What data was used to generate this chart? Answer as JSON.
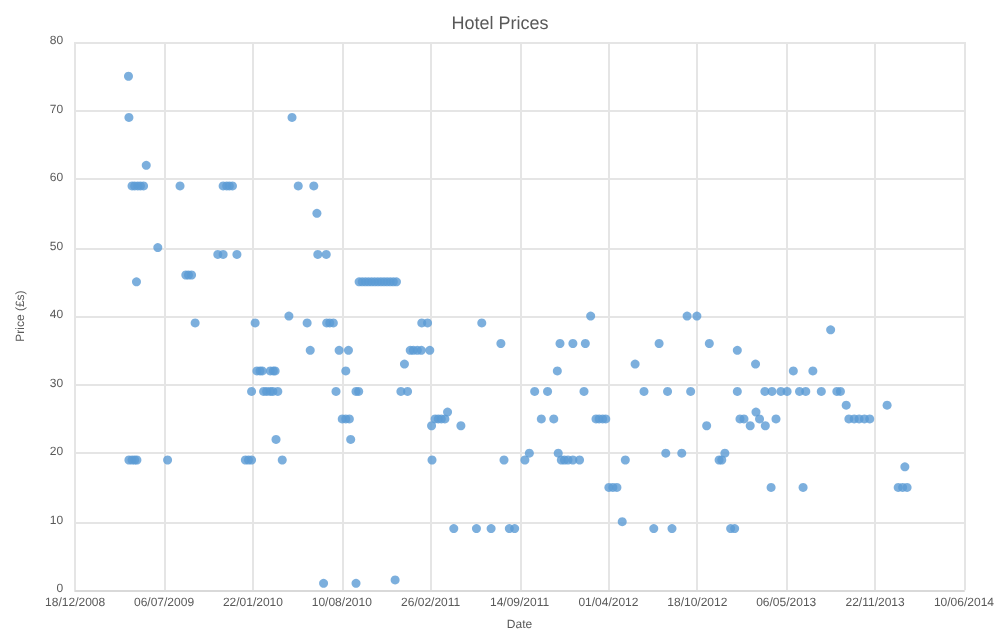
{
  "chart_data": {
    "type": "scatter",
    "title": "Hotel Prices",
    "xlabel": "Date",
    "ylabel": "Price (£s)",
    "x": [
      "2009-04-17",
      "2009-04-18",
      "2009-04-25",
      "2009-05-01",
      "2009-05-08",
      "2009-05-14",
      "2009-05-21",
      "2009-05-05",
      "2009-04-18",
      "2009-04-25",
      "2009-05-01",
      "2009-05-06",
      "2009-05-27",
      "2009-06-22",
      "2009-07-14",
      "2009-08-11",
      "2009-08-24",
      "2009-08-30",
      "2009-09-06",
      "2009-09-14",
      "2009-11-04",
      "2009-11-16",
      "2009-11-16",
      "2009-11-24",
      "2009-11-30",
      "2009-12-07",
      "2009-12-17",
      "2010-01-05",
      "2010-01-12",
      "2010-01-19",
      "2010-01-19",
      "2010-01-27",
      "2010-01-31",
      "2010-02-07",
      "2010-02-12",
      "2010-02-15",
      "2010-02-22",
      "2010-03-02",
      "2010-03-08",
      "2010-03-19",
      "2010-03-02",
      "2010-03-09",
      "2010-03-13",
      "2010-03-15",
      "2010-03-29",
      "2010-04-13",
      "2010-04-20",
      "2010-05-04",
      "2010-05-24",
      "2010-05-31",
      "2010-06-08",
      "2010-06-15",
      "2010-06-17",
      "2010-06-30",
      "2010-07-06",
      "2010-07-07",
      "2010-07-14",
      "2010-07-22",
      "2010-07-28",
      "2010-08-04",
      "2010-08-11",
      "2010-08-19",
      "2010-08-25",
      "2010-08-19",
      "2010-08-27",
      "2010-08-30",
      "2010-09-11",
      "2010-09-17",
      "2010-09-11",
      "2010-09-18",
      "2010-09-25",
      "2010-10-02",
      "2010-10-09",
      "2010-10-16",
      "2010-10-23",
      "2010-10-30",
      "2010-11-06",
      "2010-11-13",
      "2010-11-20",
      "2010-11-27",
      "2010-12-04",
      "2010-12-11",
      "2010-12-08",
      "2010-12-21",
      "2011-01-05",
      "2010-12-29",
      "2011-01-11",
      "2011-01-18",
      "2011-01-27",
      "2011-02-05",
      "2011-02-06",
      "2011-02-19",
      "2011-02-24",
      "2011-02-28",
      "2011-03-01",
      "2011-03-08",
      "2011-03-15",
      "2011-03-22",
      "2011-03-30",
      "2011-04-05",
      "2011-04-19",
      "2011-05-05",
      "2011-06-09",
      "2011-06-21",
      "2011-07-12",
      "2011-08-03",
      "2011-08-10",
      "2011-08-22",
      "2011-09-03",
      "2011-09-26",
      "2011-10-06",
      "2011-10-18",
      "2011-11-02",
      "2011-11-16",
      "2011-11-30",
      "2011-12-08",
      "2011-12-14",
      "2011-12-10",
      "2011-12-17",
      "2011-12-24",
      "2012-01-01",
      "2012-01-12",
      "2012-01-27",
      "2012-01-12",
      "2012-02-06",
      "2012-02-09",
      "2012-02-21",
      "2012-03-04",
      "2012-03-11",
      "2012-03-19",
      "2012-03-26",
      "2012-04-02",
      "2012-04-11",
      "2012-04-20",
      "2012-05-02",
      "2012-05-09",
      "2012-05-31",
      "2012-06-20",
      "2012-07-12",
      "2012-07-24",
      "2012-08-12",
      "2012-08-08",
      "2012-08-22",
      "2012-09-13",
      "2012-09-25",
      "2012-10-03",
      "2012-10-17",
      "2012-11-08",
      "2012-11-14",
      "2012-12-06",
      "2012-12-12",
      "2012-12-19",
      "2013-01-01",
      "2013-01-10",
      "2013-01-16",
      "2013-01-16",
      "2013-01-22",
      "2013-01-31",
      "2013-02-14",
      "2013-02-26",
      "2013-02-27",
      "2013-03-07",
      "2013-03-19",
      "2013-04-04",
      "2013-03-20",
      "2013-04-02",
      "2013-04-13",
      "2013-04-24",
      "2013-05-08",
      "2013-05-22",
      "2013-06-05",
      "2013-06-19",
      "2013-06-13",
      "2013-07-05",
      "2013-07-24",
      "2013-08-14",
      "2013-08-28",
      "2013-09-05",
      "2013-09-18",
      "2013-09-24",
      "2013-10-06",
      "2013-10-17",
      "2013-10-29",
      "2013-11-10",
      "2013-12-19",
      "2014-01-13",
      "2014-01-23",
      "2014-02-02",
      "2014-01-28"
    ],
    "values": [
      75,
      69,
      59,
      59,
      59,
      59,
      59,
      45,
      19,
      19,
      19,
      19,
      62,
      50,
      19,
      59,
      46,
      46,
      46,
      39,
      49,
      49,
      59,
      59,
      59,
      59,
      49,
      19,
      19,
      19,
      29,
      39,
      32,
      32,
      32,
      29,
      29,
      29,
      29,
      29,
      32,
      32,
      32,
      22,
      19,
      40,
      69,
      59,
      39,
      35,
      59,
      55,
      49,
      1,
      49,
      39,
      39,
      39,
      29,
      35,
      25,
      32,
      35,
      25,
      25,
      22,
      29,
      29,
      1,
      45,
      45,
      45,
      45,
      45,
      45,
      45,
      45,
      45,
      45,
      45,
      45,
      45,
      1.5,
      29,
      29,
      33,
      35,
      35,
      35,
      35,
      39,
      39,
      35,
      24,
      19,
      25,
      25,
      25,
      25,
      26,
      9,
      24,
      9,
      39,
      9,
      36,
      19,
      9,
      9,
      19,
      20,
      29,
      25,
      29,
      25,
      32,
      36,
      20,
      19,
      19,
      19,
      19,
      19,
      36,
      29,
      36,
      40,
      25,
      25,
      25,
      25,
      15,
      15,
      15,
      10,
      19,
      33,
      29,
      9,
      36,
      29,
      20,
      9,
      20,
      40,
      29,
      40,
      24,
      36,
      19,
      19,
      20,
      9,
      9,
      35,
      29,
      25,
      25,
      24,
      33,
      26,
      25,
      29,
      29,
      24,
      15,
      25,
      29,
      29,
      32,
      29,
      29,
      15,
      32,
      29,
      38,
      29,
      29,
      27,
      25,
      25,
      25,
      25,
      25,
      27,
      15,
      15,
      15,
      18
    ],
    "color": "#5b9bd5",
    "marker": "circle",
    "grid": true,
    "xlim": [
      "2008-12-18",
      "2014-06-10"
    ],
    "xticks": [
      {
        "value": "2008-12-18",
        "label": "18/12/2008"
      },
      {
        "value": "2009-07-06",
        "label": "06/07/2009"
      },
      {
        "value": "2010-01-22",
        "label": "22/01/2010"
      },
      {
        "value": "2010-08-10",
        "label": "10/08/2010"
      },
      {
        "value": "2011-02-26",
        "label": "26/02/2011"
      },
      {
        "value": "2011-09-14",
        "label": "14/09/2011"
      },
      {
        "value": "2012-04-01",
        "label": "01/04/2012"
      },
      {
        "value": "2012-10-18",
        "label": "18/10/2012"
      },
      {
        "value": "2013-05-06",
        "label": "06/05/2013"
      },
      {
        "value": "2013-11-22",
        "label": "22/11/2013"
      },
      {
        "value": "2014-06-10",
        "label": "10/06/2014"
      }
    ],
    "ylim": [
      0,
      80
    ],
    "yticks": [
      0,
      10,
      20,
      30,
      40,
      50,
      60,
      70,
      80
    ]
  }
}
